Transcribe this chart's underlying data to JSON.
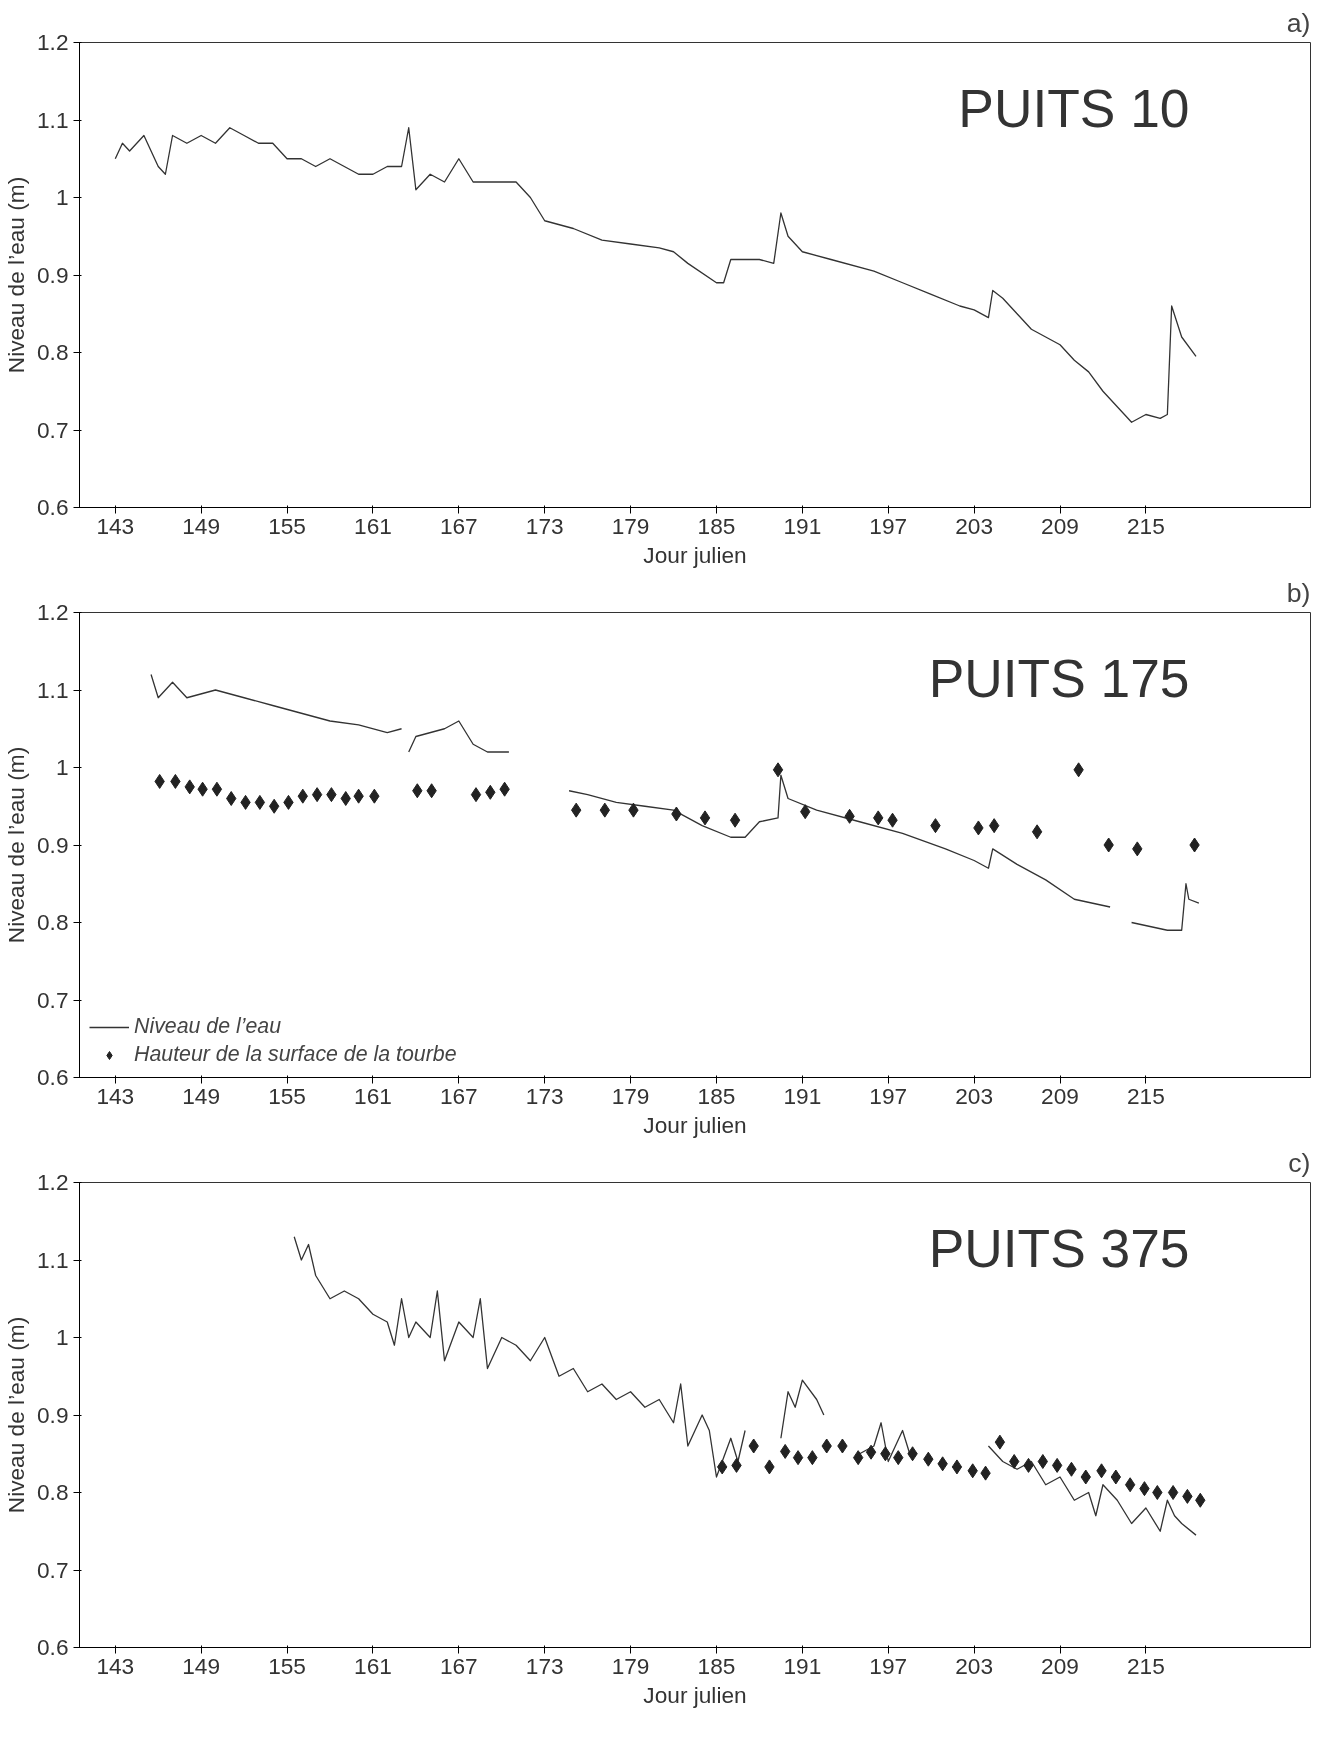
{
  "chart_data": [
    {
      "type": "line",
      "title": "a)",
      "xlabel": "Jour julien",
      "ylabel": "Niveau de l’eau (m)",
      "annotations": [
        "PUITS 10"
      ],
      "xlim": [
        140.5,
        226.5
      ],
      "ylim": [
        0.6,
        1.2
      ],
      "xticks": [
        143,
        149,
        155,
        161,
        167,
        173,
        179,
        185,
        191,
        197,
        203,
        209,
        215
      ],
      "yticks": [
        0.6,
        0.7,
        0.8,
        0.9,
        1,
        1.1,
        1.2
      ],
      "grid": false,
      "legend": false,
      "marker": "none",
      "line_style": "solid",
      "series": [
        {
          "color": "#333333",
          "x": [
            143,
            143.5,
            144,
            145,
            146,
            146.5,
            147,
            148,
            149,
            150,
            151,
            152,
            153,
            154,
            155,
            156,
            157,
            158,
            159,
            160,
            161,
            162,
            163,
            163.5,
            164,
            165,
            166,
            167,
            168,
            169,
            170,
            171,
            172,
            173,
            175,
            177,
            179,
            181,
            182,
            183,
            185,
            185.5,
            186,
            188,
            189,
            189.5,
            190,
            191,
            193,
            196,
            198,
            200,
            202,
            203,
            204,
            204.3,
            205,
            206,
            207,
            208,
            209,
            210,
            211,
            212,
            213,
            214,
            215,
            216,
            216.5,
            216.8,
            217.5,
            218.5
          ],
          "values": [
            1.05,
            1.07,
            1.06,
            1.08,
            1.04,
            1.03,
            1.08,
            1.07,
            1.08,
            1.07,
            1.09,
            1.08,
            1.07,
            1.07,
            1.05,
            1.05,
            1.04,
            1.05,
            1.04,
            1.03,
            1.03,
            1.04,
            1.04,
            1.09,
            1.01,
            1.03,
            1.02,
            1.05,
            1.02,
            1.02,
            1.02,
            1.02,
            1.0,
            0.97,
            0.96,
            0.945,
            0.94,
            0.935,
            0.93,
            0.915,
            0.89,
            0.89,
            0.92,
            0.92,
            0.915,
            0.98,
            0.95,
            0.93,
            0.92,
            0.905,
            0.89,
            0.875,
            0.86,
            0.855,
            0.845,
            0.88,
            0.87,
            0.85,
            0.83,
            0.82,
            0.81,
            0.79,
            0.775,
            0.75,
            0.73,
            0.71,
            0.72,
            0.715,
            0.72,
            0.86,
            0.82,
            0.795
          ]
        }
      ]
    },
    {
      "type": "line",
      "title": "b)",
      "xlabel": "Jour julien",
      "ylabel": "Niveau de l’eau (m)",
      "annotations": [
        "PUITS 175"
      ],
      "xlim": [
        140.5,
        226.5
      ],
      "ylim": [
        0.6,
        1.2
      ],
      "xticks": [
        143,
        149,
        155,
        161,
        167,
        173,
        179,
        185,
        191,
        197,
        203,
        209,
        215
      ],
      "yticks": [
        0.6,
        0.7,
        0.8,
        0.9,
        1,
        1.1,
        1.2
      ],
      "grid": false,
      "legend": "bottom left",
      "series": [
        {
          "name": "Niveau de l’eau",
          "color": "#333333",
          "marker": "none",
          "line_style": "solid",
          "x": [
            145.5,
            146,
            147,
            148,
            150,
            152,
            154,
            156,
            158,
            160,
            162,
            163,
            163.3,
            163.5,
            164,
            166,
            167,
            168,
            169,
            170.5,
            172,
            174.7,
            176,
            178,
            180,
            182,
            184,
            186,
            187,
            188,
            189.3,
            189.5,
            190,
            192,
            195,
            198,
            201,
            203,
            204,
            204.3,
            206,
            208,
            210,
            212.5,
            213.3,
            214,
            216.5,
            217.5,
            217.8,
            218,
            218.7
          ],
          "values": [
            1.12,
            1.09,
            1.11,
            1.09,
            1.1,
            1.09,
            1.08,
            1.07,
            1.06,
            1.055,
            1.045,
            1.05,
            null,
            1.02,
            1.04,
            1.05,
            1.06,
            1.03,
            1.02,
            1.02,
            null,
            0.97,
            0.965,
            0.955,
            0.95,
            0.945,
            0.925,
            0.91,
            0.91,
            0.93,
            0.935,
            0.99,
            0.96,
            0.945,
            0.93,
            0.915,
            0.895,
            0.88,
            0.87,
            0.895,
            0.875,
            0.855,
            0.83,
            0.82,
            null,
            0.8,
            0.79,
            0.79,
            0.85,
            0.83,
            0.825
          ]
        },
        {
          "type": "scatter",
          "name": "Hauteur de la surface de la tourbe",
          "color": "#222222",
          "marker": "diamond",
          "x": [
            146.1,
            147.2,
            148.2,
            149.1,
            150.1,
            151.1,
            152.1,
            153.1,
            154.1,
            155.1,
            156.1,
            157.1,
            158.1,
            159.1,
            160.0,
            161.1,
            164.1,
            165.1,
            168.2,
            169.2,
            170.2,
            175.2,
            177.2,
            179.2,
            182.2,
            184.2,
            186.3,
            189.3,
            191.2,
            194.3,
            196.3,
            197.3,
            200.3,
            203.3,
            204.4,
            207.4,
            210.3,
            212.4,
            214.4,
            218.4
          ],
          "values": [
            0.982,
            0.982,
            0.975,
            0.972,
            0.972,
            0.96,
            0.955,
            0.955,
            0.95,
            0.955,
            0.963,
            0.965,
            0.965,
            0.96,
            0.963,
            0.963,
            0.97,
            0.97,
            0.965,
            0.968,
            0.972,
            0.945,
            0.945,
            0.945,
            0.94,
            0.935,
            0.932,
            0.997,
            0.943,
            0.937,
            0.935,
            0.932,
            0.925,
            0.922,
            0.925,
            0.917,
            0.997,
            0.9,
            0.895,
            0.9
          ]
        }
      ]
    },
    {
      "type": "line",
      "title": "c)",
      "xlabel": "Jour julien",
      "ylabel": "Niveau de l’eau (m)",
      "annotations": [
        "PUITS 375"
      ],
      "xlim": [
        140.5,
        226.5
      ],
      "ylim": [
        0.6,
        1.2
      ],
      "xticks": [
        143,
        149,
        155,
        161,
        167,
        173,
        179,
        185,
        191,
        197,
        203,
        209,
        215
      ],
      "yticks": [
        0.6,
        0.7,
        0.8,
        0.9,
        1,
        1.1,
        1.2
      ],
      "grid": false,
      "legend": false,
      "series": [
        {
          "color": "#333333",
          "marker": "none",
          "line_style": "solid",
          "x": [
            155.5,
            156,
            156.5,
            157,
            158,
            159,
            160,
            161,
            162,
            162.5,
            163,
            163.5,
            164,
            165,
            165.5,
            166,
            167,
            168,
            168.5,
            169,
            170,
            171,
            172,
            173,
            174,
            175,
            176,
            177,
            178,
            179,
            180,
            181,
            182,
            182.5,
            183,
            184,
            184.5,
            185,
            186,
            186.5,
            187,
            188,
            189.5,
            190,
            190.5,
            191,
            192,
            192.5,
            194,
            195,
            196,
            196.5,
            197,
            198,
            198.5,
            201,
            204,
            205,
            206,
            207,
            208,
            209,
            210,
            211,
            211.5,
            212,
            213,
            214,
            215,
            216,
            216.5,
            217,
            217.5,
            218.5
          ],
          "values": [
            1.13,
            1.1,
            1.12,
            1.08,
            1.05,
            1.06,
            1.05,
            1.03,
            1.02,
            0.99,
            1.05,
            1.0,
            1.02,
            1.0,
            1.06,
            0.97,
            1.02,
            1.0,
            1.05,
            0.96,
            1.0,
            0.99,
            0.97,
            1.0,
            0.95,
            0.96,
            0.93,
            0.94,
            0.92,
            0.93,
            0.91,
            0.92,
            0.89,
            0.94,
            0.86,
            0.9,
            0.88,
            0.82,
            0.87,
            0.84,
            0.88,
            null,
            0.87,
            0.93,
            0.91,
            0.945,
            0.92,
            0.9,
            null,
            0.85,
            0.86,
            0.89,
            0.84,
            0.88,
            0.85,
            null,
            0.86,
            0.84,
            0.83,
            0.84,
            0.81,
            0.82,
            0.79,
            0.8,
            0.77,
            0.81,
            0.79,
            0.76,
            0.78,
            0.75,
            0.79,
            0.77,
            0.76,
            0.745
          ]
        },
        {
          "type": "scatter",
          "color": "#222222",
          "marker": "diamond",
          "x": [
            185.4,
            186.4,
            187.6,
            188.7,
            189.8,
            190.7,
            191.7,
            192.7,
            193.8,
            194.9,
            195.8,
            196.8,
            197.7,
            198.7,
            199.8,
            200.8,
            201.8,
            202.9,
            203.8,
            204.8,
            205.8,
            206.8,
            207.8,
            208.8,
            209.8,
            210.8,
            211.9,
            212.9,
            213.9,
            214.9,
            215.8,
            216.9,
            217.9,
            218.8
          ],
          "values": [
            0.833,
            0.835,
            0.86,
            0.833,
            0.853,
            0.845,
            0.845,
            0.86,
            0.86,
            0.845,
            0.852,
            0.85,
            0.845,
            0.85,
            0.843,
            0.837,
            0.833,
            0.828,
            0.825,
            0.865,
            0.84,
            0.835,
            0.84,
            0.835,
            0.83,
            0.82,
            0.828,
            0.82,
            0.81,
            0.805,
            0.8,
            0.8,
            0.795,
            0.79
          ]
        }
      ]
    }
  ]
}
